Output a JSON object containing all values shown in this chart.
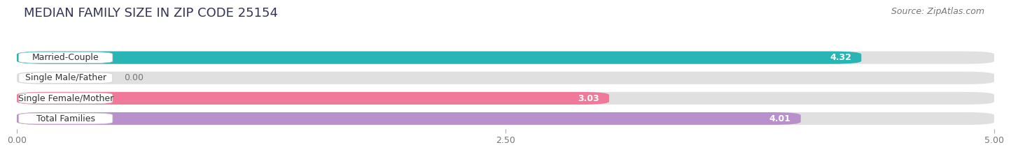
{
  "title": "MEDIAN FAMILY SIZE IN ZIP CODE 25154",
  "source": "Source: ZipAtlas.com",
  "categories": [
    "Married-Couple",
    "Single Male/Father",
    "Single Female/Mother",
    "Total Families"
  ],
  "values": [
    4.32,
    0.0,
    3.03,
    4.01
  ],
  "bar_colors": [
    "#27b5b5",
    "#a0b0e8",
    "#f07898",
    "#b890cc"
  ],
  "bar_bg_color": "#e0e0e0",
  "xlim": [
    0,
    5.0
  ],
  "xticks": [
    0.0,
    2.5,
    5.0
  ],
  "xtick_labels": [
    "0.00",
    "2.50",
    "5.00"
  ],
  "label_color": "#777777",
  "value_color": "#ffffff",
  "title_color": "#333355",
  "title_fontsize": 13,
  "source_fontsize": 9,
  "label_fontsize": 9,
  "value_fontsize": 9,
  "background_color": "#ffffff"
}
